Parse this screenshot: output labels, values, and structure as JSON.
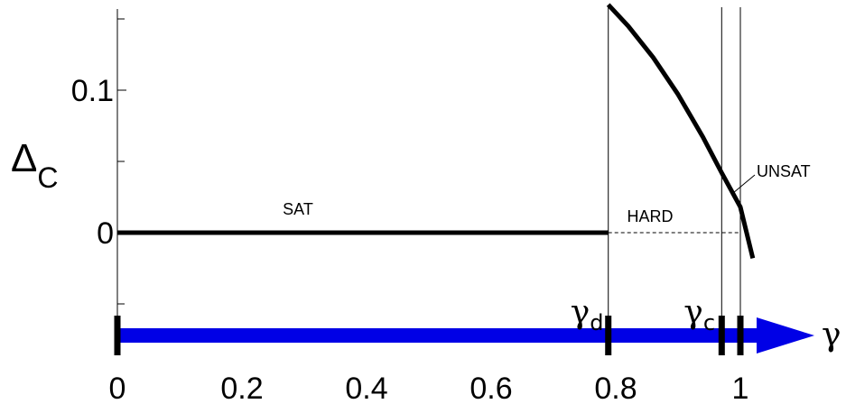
{
  "chart_data": {
    "type": "line",
    "xlabel": "γ",
    "ylabel": {
      "main": "Δ",
      "sub": "C"
    },
    "xlim": [
      0,
      1.05
    ],
    "ylim": [
      -0.05,
      0.155
    ],
    "x_ticks": [
      {
        "value": 0,
        "label": "0"
      },
      {
        "value": 0.2,
        "label": "0.2"
      },
      {
        "value": 0.4,
        "label": "0.4"
      },
      {
        "value": 0.6,
        "label": "0.6"
      },
      {
        "value": 0.8,
        "label": "0.8"
      },
      {
        "value": 1,
        "label": "1"
      }
    ],
    "y_ticks": [
      {
        "value": 0,
        "label": "0"
      },
      {
        "value": 0.1,
        "label": "0.1"
      }
    ],
    "y_minor_ticks": [
      -0.05,
      0.05,
      0.15
    ],
    "series": [
      {
        "values": [
          [
            0,
            0
          ],
          [
            0.788,
            0
          ]
        ]
      },
      {
        "values": [
          [
            0.788,
            0.16
          ],
          [
            0.82,
            0.145
          ],
          [
            0.86,
            0.123
          ],
          [
            0.9,
            0.097
          ],
          [
            0.94,
            0.067
          ],
          [
            0.97,
            0.042
          ],
          [
            1.0,
            0.018
          ],
          [
            1.02,
            -0.018
          ]
        ]
      }
    ],
    "dashed_zero_segment": [
      0.788,
      1.0
    ],
    "vertical_lines": [
      0.788,
      0.97,
      1.0
    ],
    "region_labels": [
      "SAT",
      "HARD",
      "UNSAT"
    ],
    "axis_marks": [
      {
        "value": 0,
        "label": ""
      },
      {
        "value": 0.788,
        "label": "γ",
        "sub": "d"
      },
      {
        "value": 0.97,
        "label": "γ",
        "sub": "c"
      },
      {
        "value": 1.0,
        "label": ""
      }
    ],
    "arrow_color": "#0000e6",
    "line_color": "#000000",
    "grid": false
  }
}
